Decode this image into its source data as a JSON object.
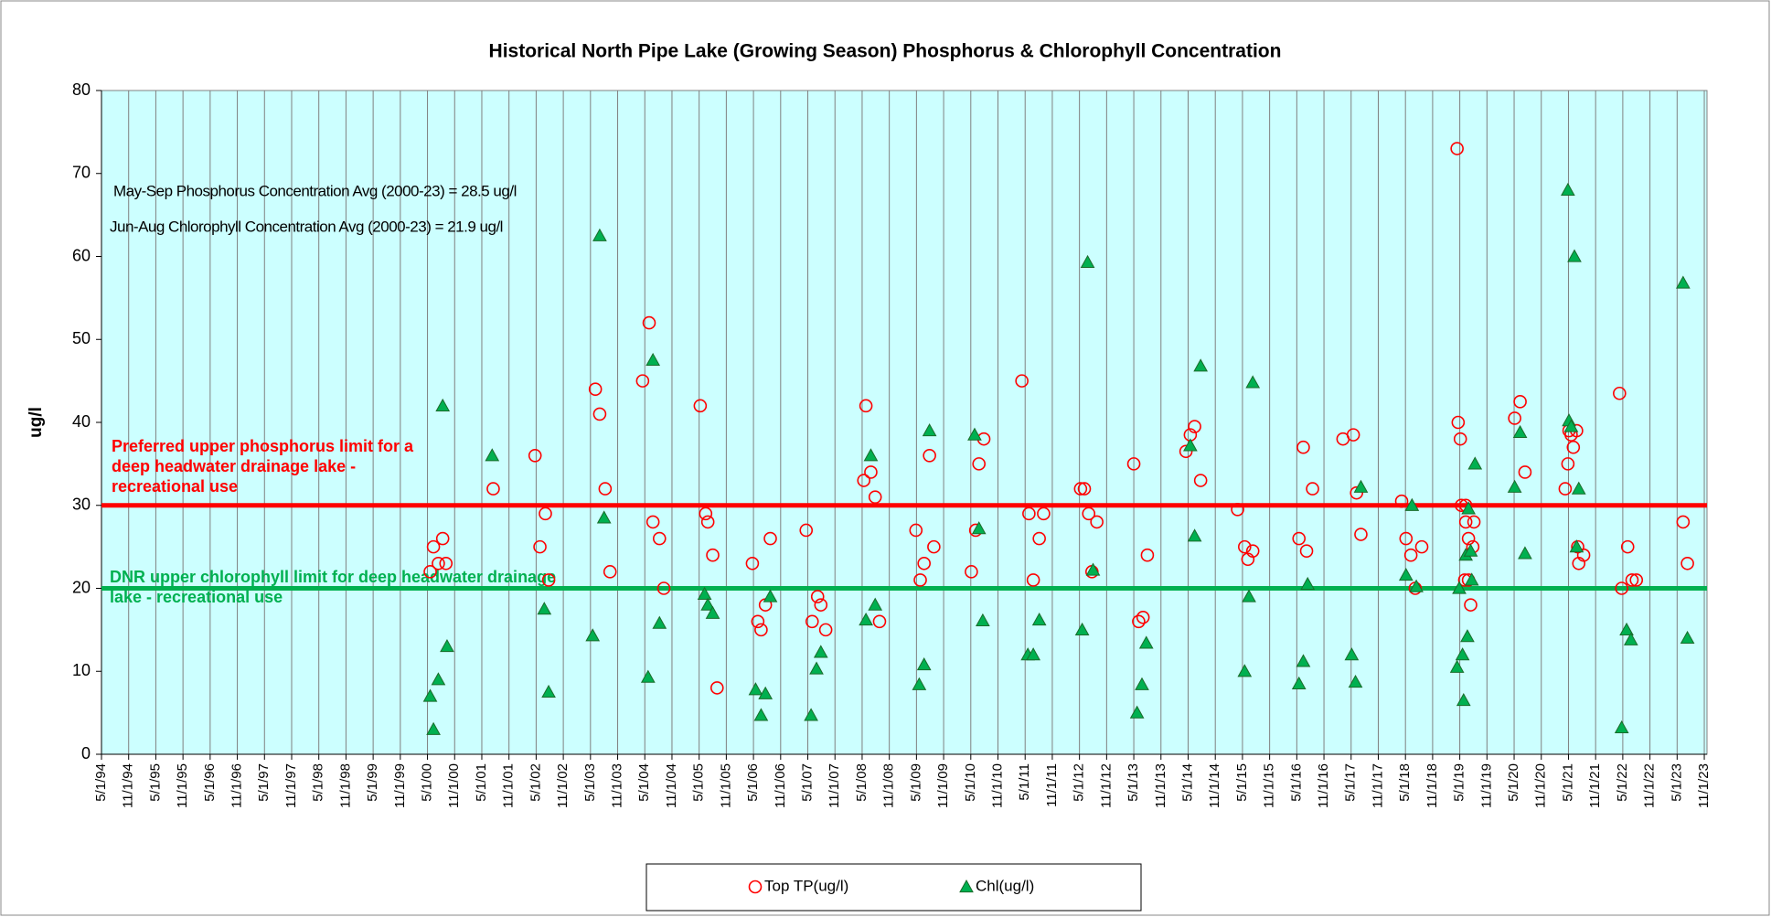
{
  "chart_data": {
    "type": "scatter",
    "title": "Historical North Pipe Lake (Growing Season) Phosphorus & Chlorophyll Concentration",
    "y_label": "ug/l",
    "annotations": [
      "May-Sep Phosphorus Concentration Avg (2000-23) = 28.5 ug/l",
      "Jun-Aug Chlorophyll Concentration Avg (2000-23) = 21.9 ug/l"
    ],
    "reference_lines": [
      {
        "value": 30,
        "color": "#ff0000",
        "label": [
          "Preferred upper phosphorus limit  for a",
          "deep headwater drainage lake -",
          "recreational use"
        ]
      },
      {
        "value": 20,
        "color": "#00b050",
        "label": [
          "DNR upper chlorophyll limit for deep headwater drainage",
          "lake - recreational use"
        ]
      }
    ],
    "ylim": [
      0,
      80
    ],
    "yticks": [
      0,
      10,
      20,
      30,
      40,
      50,
      60,
      70,
      80
    ],
    "xlim": [
      1994.33,
      2023.88
    ],
    "xticks": [
      {
        "value": 1994.33,
        "label": "5/1/94"
      },
      {
        "value": 1994.83,
        "label": "11/1/94"
      },
      {
        "value": 1995.33,
        "label": "5/1/95"
      },
      {
        "value": 1995.83,
        "label": "11/1/95"
      },
      {
        "value": 1996.33,
        "label": "5/1/96"
      },
      {
        "value": 1996.83,
        "label": "11/1/96"
      },
      {
        "value": 1997.33,
        "label": "5/1/97"
      },
      {
        "value": 1997.83,
        "label": "11/1/97"
      },
      {
        "value": 1998.33,
        "label": "5/1/98"
      },
      {
        "value": 1998.83,
        "label": "11/1/98"
      },
      {
        "value": 1999.33,
        "label": "5/1/99"
      },
      {
        "value": 1999.83,
        "label": "11/1/99"
      },
      {
        "value": 2000.33,
        "label": "5/1/00"
      },
      {
        "value": 2000.83,
        "label": "11/1/00"
      },
      {
        "value": 2001.33,
        "label": "5/1/01"
      },
      {
        "value": 2001.83,
        "label": "11/1/01"
      },
      {
        "value": 2002.33,
        "label": "5/1/02"
      },
      {
        "value": 2002.83,
        "label": "11/1/02"
      },
      {
        "value": 2003.33,
        "label": "5/1/03"
      },
      {
        "value": 2003.83,
        "label": "11/1/03"
      },
      {
        "value": 2004.33,
        "label": "5/1/04"
      },
      {
        "value": 2004.83,
        "label": "11/1/04"
      },
      {
        "value": 2005.33,
        "label": "5/1/05"
      },
      {
        "value": 2005.83,
        "label": "11/1/05"
      },
      {
        "value": 2006.33,
        "label": "5/1/06"
      },
      {
        "value": 2006.83,
        "label": "11/1/06"
      },
      {
        "value": 2007.33,
        "label": "5/1/07"
      },
      {
        "value": 2007.83,
        "label": "11/1/07"
      },
      {
        "value": 2008.33,
        "label": "5/1/08"
      },
      {
        "value": 2008.83,
        "label": "11/1/08"
      },
      {
        "value": 2009.33,
        "label": "5/1/09"
      },
      {
        "value": 2009.83,
        "label": "11/1/09"
      },
      {
        "value": 2010.33,
        "label": "5/1/10"
      },
      {
        "value": 2010.83,
        "label": "11/1/10"
      },
      {
        "value": 2011.33,
        "label": "5/1/11"
      },
      {
        "value": 2011.83,
        "label": "11/1/11"
      },
      {
        "value": 2012.33,
        "label": "5/1/12"
      },
      {
        "value": 2012.83,
        "label": "11/1/12"
      },
      {
        "value": 2013.33,
        "label": "5/1/13"
      },
      {
        "value": 2013.83,
        "label": "11/1/13"
      },
      {
        "value": 2014.33,
        "label": "5/1/14"
      },
      {
        "value": 2014.83,
        "label": "11/1/14"
      },
      {
        "value": 2015.33,
        "label": "5/1/15"
      },
      {
        "value": 2015.83,
        "label": "11/1/15"
      },
      {
        "value": 2016.33,
        "label": "5/1/16"
      },
      {
        "value": 2016.83,
        "label": "11/1/16"
      },
      {
        "value": 2017.33,
        "label": "5/1/17"
      },
      {
        "value": 2017.83,
        "label": "11/1/17"
      },
      {
        "value": 2018.33,
        "label": "5/1/18"
      },
      {
        "value": 2018.83,
        "label": "11/1/18"
      },
      {
        "value": 2019.33,
        "label": "5/1/19"
      },
      {
        "value": 2019.83,
        "label": "11/1/19"
      },
      {
        "value": 2020.33,
        "label": "5/1/20"
      },
      {
        "value": 2020.83,
        "label": "11/1/20"
      },
      {
        "value": 2021.33,
        "label": "5/1/21"
      },
      {
        "value": 2021.83,
        "label": "11/1/21"
      },
      {
        "value": 2022.33,
        "label": "5/1/22"
      },
      {
        "value": 2022.83,
        "label": "11/1/22"
      },
      {
        "value": 2023.33,
        "label": "5/1/23"
      },
      {
        "value": 2023.83,
        "label": "11/1/23"
      }
    ],
    "grid": true,
    "background": "#ccffff",
    "legend": "bottom",
    "series": [
      {
        "name": "Top TP(ug/l)",
        "color": "#ff0000",
        "marker": "circle",
        "x": [
          2000.38,
          2000.44,
          2000.53,
          2000.61,
          2000.67,
          2001.54,
          2002.31,
          2002.4,
          2002.5,
          2002.56,
          2003.42,
          2003.5,
          2003.6,
          2003.69,
          2004.29,
          2004.41,
          2004.48,
          2004.6,
          2004.68,
          2005.35,
          2005.45,
          2005.49,
          2005.58,
          2005.66,
          2006.31,
          2006.41,
          2006.47,
          2006.55,
          2006.64,
          2007.3,
          2007.41,
          2007.51,
          2007.57,
          2007.66,
          2008.36,
          2008.4,
          2008.49,
          2008.57,
          2008.65,
          2009.32,
          2009.4,
          2009.47,
          2009.57,
          2009.65,
          2010.34,
          2010.42,
          2010.48,
          2010.57,
          2011.27,
          2011.4,
          2011.48,
          2011.59,
          2011.67,
          2012.35,
          2012.42,
          2012.5,
          2012.56,
          2012.65,
          2013.33,
          2013.42,
          2013.5,
          2013.58,
          2014.29,
          2014.37,
          2014.45,
          2014.56,
          2015.24,
          2015.37,
          2015.43,
          2015.52,
          2016.37,
          2016.45,
          2016.51,
          2016.62,
          2017.18,
          2017.37,
          2017.43,
          2017.51,
          2018.26,
          2018.34,
          2018.43,
          2018.51,
          2018.63,
          2019.28,
          2019.3,
          2019.34,
          2019.36,
          2019.44,
          2019.44,
          2019.49,
          2019.49,
          2019.53,
          2019.57,
          2019.59,
          2019.42,
          2020.34,
          2020.44,
          2020.53,
          2021.27,
          2021.32,
          2021.34,
          2021.38,
          2021.42,
          2021.48,
          2021.5,
          2021.52,
          2021.61,
          2022.27,
          2022.31,
          2022.42,
          2022.5,
          2022.58,
          2023.44,
          2023.52
        ],
        "values": [
          22,
          25,
          23,
          26,
          23,
          32,
          36,
          25,
          29,
          21,
          44,
          41,
          32,
          22,
          45,
          52,
          28,
          26,
          20,
          42,
          29,
          28,
          24,
          8,
          23,
          16,
          15,
          18,
          26,
          27,
          16,
          19,
          18,
          15,
          33,
          42,
          34,
          31,
          16,
          27,
          21,
          23,
          36,
          25,
          22,
          27,
          35,
          38,
          45,
          29,
          21,
          26,
          29,
          32,
          32,
          29,
          22,
          28,
          35,
          16,
          16.5,
          24,
          36.5,
          38.5,
          39.5,
          33,
          29.5,
          25,
          23.5,
          24.5,
          26,
          37,
          24.5,
          32,
          38,
          38.5,
          31.5,
          26.5,
          30.5,
          26,
          24,
          20,
          25,
          73,
          40,
          38,
          30,
          30,
          28,
          26,
          21,
          18,
          25,
          28,
          21,
          40.5,
          42.5,
          34,
          32,
          35,
          39,
          38.5,
          37,
          39,
          25,
          23,
          24,
          43.5,
          20,
          25,
          21,
          21,
          28,
          23
        ]
      },
      {
        "name": "Chl(ug/l)",
        "color": "#00b050",
        "marker": "triangle",
        "x": [
          2000.38,
          2000.44,
          2000.53,
          2000.61,
          2000.69,
          2001.52,
          2002.48,
          2002.56,
          2003.37,
          2003.5,
          2003.58,
          2004.39,
          2004.48,
          2004.6,
          2005.43,
          2005.49,
          2005.58,
          2006.37,
          2006.47,
          2006.55,
          2006.64,
          2007.39,
          2007.49,
          2007.57,
          2008.4,
          2008.49,
          2008.57,
          2009.38,
          2009.47,
          2009.57,
          2010.4,
          2010.48,
          2010.55,
          2011.38,
          2011.48,
          2011.59,
          2012.38,
          2012.48,
          2012.58,
          2013.39,
          2013.48,
          2013.56,
          2014.37,
          2014.45,
          2014.56,
          2015.37,
          2015.45,
          2015.52,
          2016.37,
          2016.45,
          2016.53,
          2017.34,
          2017.41,
          2017.51,
          2018.34,
          2018.45,
          2018.53,
          2019.28,
          2019.32,
          2019.38,
          2019.4,
          2019.44,
          2019.47,
          2019.49,
          2019.53,
          2019.55,
          2019.61,
          2020.34,
          2020.44,
          2020.53,
          2021.32,
          2021.34,
          2021.38,
          2021.44,
          2021.48,
          2021.52,
          2022.31,
          2022.4,
          2022.48,
          2023.44,
          2023.52
        ],
        "values": [
          7,
          3,
          9,
          42,
          13,
          36,
          17.5,
          7.5,
          14.3,
          62.5,
          28.5,
          9.3,
          47.5,
          15.8,
          19.3,
          18,
          17,
          7.8,
          4.7,
          7.3,
          19,
          4.7,
          10.3,
          12.3,
          16.2,
          36,
          18,
          8.4,
          10.8,
          39,
          38.5,
          27.2,
          16.1,
          12,
          12,
          16.2,
          15,
          59.3,
          22.2,
          5,
          8.4,
          13.4,
          37.2,
          26.3,
          46.8,
          10,
          19,
          44.8,
          8.5,
          11.2,
          20.5,
          12,
          8.7,
          32.2,
          21.6,
          30,
          20.2,
          10.5,
          20,
          12,
          6.5,
          24,
          14.2,
          29.6,
          24.5,
          21,
          35,
          32.2,
          38.8,
          24.2,
          68,
          40.2,
          39.5,
          60,
          25,
          32,
          3.2,
          15,
          13.8,
          56.8,
          14
        ]
      }
    ]
  }
}
